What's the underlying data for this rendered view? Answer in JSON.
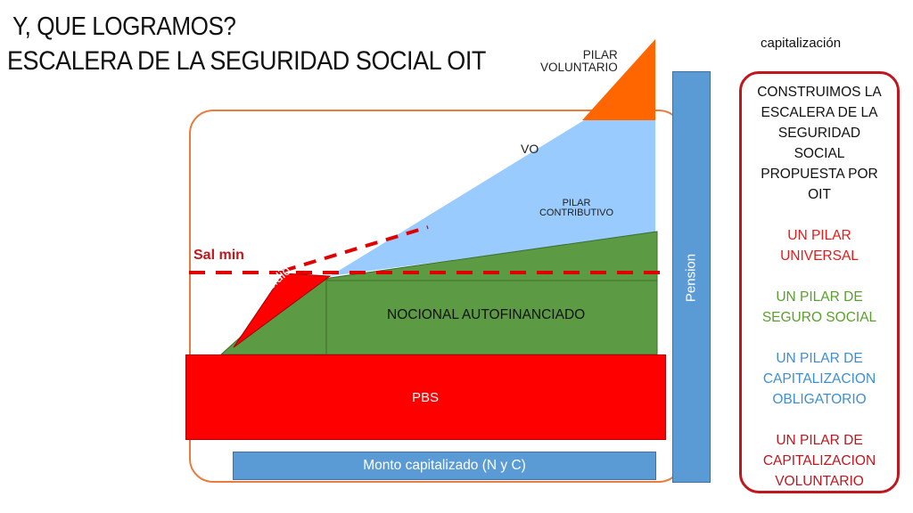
{
  "title": {
    "line1": "Y, QUE LOGRAMOS?",
    "line2": "ESCALERA DE LA SEGURIDAD SOCIAL OIT"
  },
  "diagram": {
    "pilar_voluntario": [
      "PILAR",
      "VOLUNTARIO"
    ],
    "pilar_contributivo": [
      "PILAR",
      "CONTRIBUTIVO"
    ],
    "partial_label": "VO",
    "nocional": "NOCIONAL AUTOFINANCIADO",
    "subsidio": "subsidio",
    "sal_min": "Sal min",
    "pbs": "PBS",
    "pension": "Pension",
    "monto": "Monto capitalizado (N y C)",
    "colors": {
      "orange": "#ff6600",
      "light_blue": "#99cbff",
      "green": "#5c9b43",
      "red": "#ff0000",
      "dark_red": "#c0161e",
      "blue": "#5b9bd5",
      "frame": "#e87c3e"
    }
  },
  "sidebar": {
    "top_label": "capitalización",
    "intro": [
      "CONSTRUIMOS LA",
      "ESCALERA DE LA",
      "SEGURIDAD",
      "SOCIAL",
      "PROPUESTA POR",
      "OIT"
    ],
    "pillar1": [
      "UN PILAR",
      "UNIVERSAL"
    ],
    "pillar2": [
      "UN PILAR DE",
      "SEGURO SOCIAL"
    ],
    "pillar3": [
      "UN PILAR DE",
      "CAPITALIZACION",
      "OBLIGATORIO"
    ],
    "pillar4": [
      "UN PILAR DE",
      "CAPITALIZACION",
      "VOLUNTARIO"
    ]
  }
}
